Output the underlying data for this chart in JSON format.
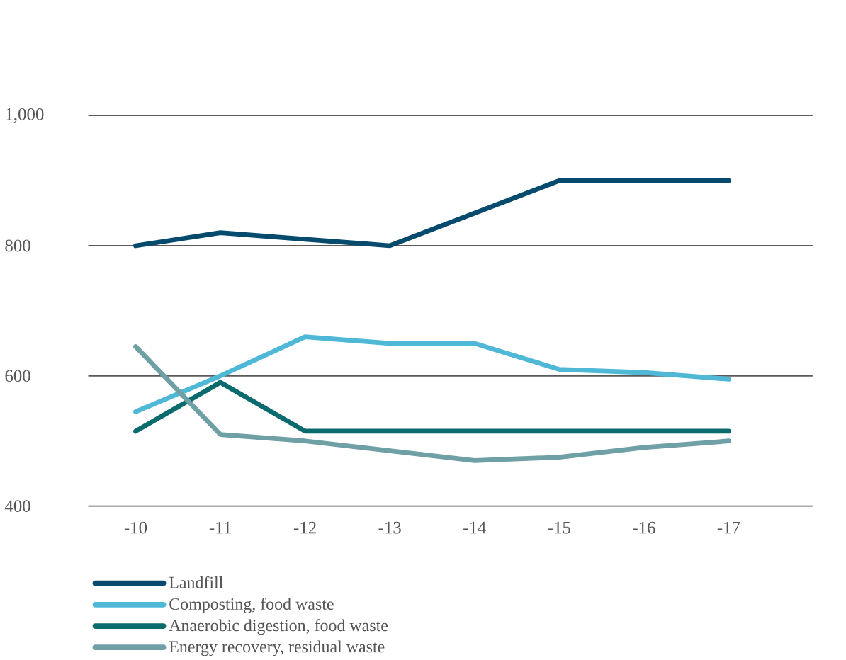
{
  "chart_data": {
    "type": "line",
    "categories": [
      "-10",
      "-11",
      "-12",
      "-13",
      "-14",
      "-15",
      "-16",
      "-17"
    ],
    "series": [
      {
        "name": "Landfill",
        "color": "#064b6e",
        "values": [
          800,
          820,
          810,
          800,
          850,
          900,
          900,
          900
        ]
      },
      {
        "name": "Composting, food waste",
        "color": "#4eb8d6",
        "values": [
          545,
          600,
          660,
          650,
          650,
          610,
          605,
          595
        ]
      },
      {
        "name": "Anaerobic digestion, food waste",
        "color": "#0a6b6e",
        "values": [
          515,
          590,
          515,
          515,
          515,
          515,
          515,
          515
        ]
      },
      {
        "name": "Energy recovery, residual waste",
        "color": "#6ea0a5",
        "values": [
          645,
          510,
          500,
          485,
          470,
          475,
          490,
          500
        ]
      }
    ],
    "ylim": [
      400,
      1000
    ],
    "yticks": [
      400,
      {
        "value": 600,
        "label": "600"
      },
      800,
      {
        "value": 1000,
        "label": "1,000"
      }
    ],
    "grid": "y",
    "legend": "bottom",
    "marker": "none",
    "line_style": "solid"
  }
}
